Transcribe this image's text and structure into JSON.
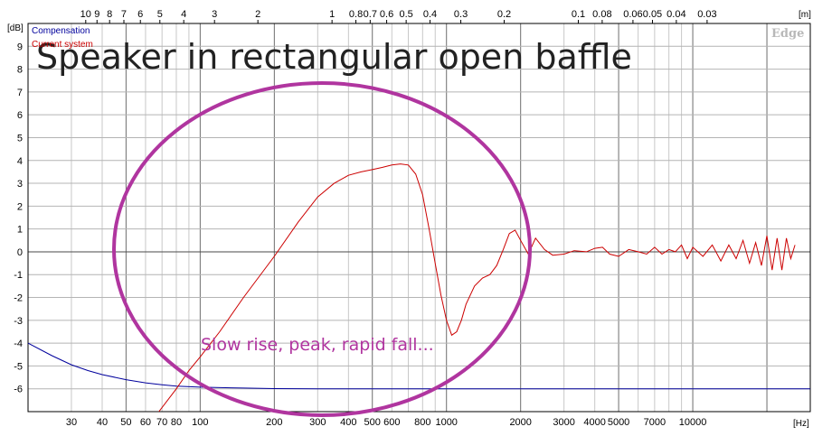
{
  "chart_data": {
    "type": "line",
    "title": "Speaker in rectangular open baffle",
    "annotation": "Slow rise, peak, rapid fall...",
    "watermark": "Edge",
    "x_unit": "[Hz]",
    "y_unit": "[dB]",
    "top_axis_unit": "[m]",
    "x_scale": "log",
    "xlim": [
      20,
      30000
    ],
    "ylim": [
      -7,
      10
    ],
    "grid": true,
    "legend_position": "top-left",
    "x_ticks": [
      {
        "v": 30,
        "label": "30"
      },
      {
        "v": 40,
        "label": "40"
      },
      {
        "v": 50,
        "label": "50"
      },
      {
        "v": 60,
        "label": "60"
      },
      {
        "v": 70,
        "label": "70"
      },
      {
        "v": 80,
        "label": "80"
      },
      {
        "v": 100,
        "label": "100"
      },
      {
        "v": 200,
        "label": "200"
      },
      {
        "v": 300,
        "label": "300"
      },
      {
        "v": 400,
        "label": "400"
      },
      {
        "v": 500,
        "label": "500"
      },
      {
        "v": 600,
        "label": "600"
      },
      {
        "v": 800,
        "label": "800"
      },
      {
        "v": 1000,
        "label": "1000"
      },
      {
        "v": 2000,
        "label": "2000"
      },
      {
        "v": 3000,
        "label": "3000"
      },
      {
        "v": 4000,
        "label": "4000"
      },
      {
        "v": 5000,
        "label": "5000"
      },
      {
        "v": 7000,
        "label": "7000"
      },
      {
        "v": 10000,
        "label": "10000"
      }
    ],
    "top_ticks": [
      {
        "label": "10"
      },
      {
        "label": "9"
      },
      {
        "label": "8"
      },
      {
        "label": "7"
      },
      {
        "label": "6"
      },
      {
        "label": "5"
      },
      {
        "label": "4"
      },
      {
        "label": "3"
      },
      {
        "label": "2"
      },
      {
        "label": "1"
      },
      {
        "label": "0.8"
      },
      {
        "label": "0.7"
      },
      {
        "label": "0.6"
      },
      {
        "label": "0.5"
      },
      {
        "label": "0.4"
      },
      {
        "label": "0.3"
      },
      {
        "label": "0.2"
      },
      {
        "label": "0.1"
      },
      {
        "label": "0.08"
      },
      {
        "label": "0.06"
      },
      {
        "label": "0.05"
      },
      {
        "label": "0.04"
      },
      {
        "label": "0.03"
      }
    ],
    "y_ticks": [
      9,
      8,
      7,
      6,
      5,
      4,
      3,
      2,
      1,
      0,
      -1,
      -2,
      -3,
      -4,
      -5,
      -6
    ],
    "series": [
      {
        "name": "Compensation",
        "color": "#00009c",
        "x": [
          20,
          25,
          30,
          35,
          40,
          50,
          60,
          70,
          80,
          100,
          150,
          200,
          300,
          500,
          1000,
          30000
        ],
        "y": [
          -4.0,
          -4.55,
          -4.95,
          -5.2,
          -5.38,
          -5.6,
          -5.74,
          -5.82,
          -5.88,
          -5.93,
          -5.97,
          -5.99,
          -6.0,
          -6.0,
          -6.0,
          -6.0
        ]
      },
      {
        "name": "Current system",
        "color": "#cc0000",
        "x": [
          68,
          80,
          90,
          100,
          120,
          150,
          200,
          250,
          300,
          350,
          400,
          450,
          500,
          550,
          600,
          650,
          700,
          750,
          800,
          850,
          900,
          950,
          1000,
          1050,
          1100,
          1150,
          1200,
          1300,
          1400,
          1500,
          1600,
          1700,
          1800,
          1900,
          2000,
          2150,
          2300,
          2500,
          2700,
          3000,
          3300,
          3700,
          4000,
          4300,
          4600,
          5000,
          5500,
          6000,
          6500,
          7000,
          7500,
          8000,
          8500,
          9000,
          9500,
          10000,
          11000,
          12000,
          13000,
          14000,
          15000,
          16000,
          17000,
          18000,
          19000,
          20000,
          21000,
          22000,
          23000,
          24000,
          25000,
          26000
        ],
        "y": [
          -7,
          -6.0,
          -5.2,
          -4.6,
          -3.5,
          -2.0,
          -0.2,
          1.3,
          2.4,
          3.0,
          3.35,
          3.5,
          3.6,
          3.7,
          3.8,
          3.85,
          3.8,
          3.4,
          2.5,
          1.0,
          -0.5,
          -1.9,
          -3.0,
          -3.65,
          -3.5,
          -3.0,
          -2.3,
          -1.5,
          -1.15,
          -1.0,
          -0.6,
          0.1,
          0.8,
          0.95,
          0.5,
          -0.1,
          0.6,
          0.1,
          -0.15,
          -0.1,
          0.05,
          0.0,
          0.15,
          0.2,
          -0.1,
          -0.2,
          0.1,
          0.0,
          -0.1,
          0.2,
          -0.1,
          0.1,
          0.0,
          0.3,
          -0.3,
          0.2,
          -0.2,
          0.3,
          -0.4,
          0.3,
          -0.3,
          0.5,
          -0.5,
          0.4,
          -0.6,
          0.7,
          -0.8,
          0.6,
          -0.8,
          0.6,
          -0.3,
          0.3
        ]
      }
    ]
  }
}
